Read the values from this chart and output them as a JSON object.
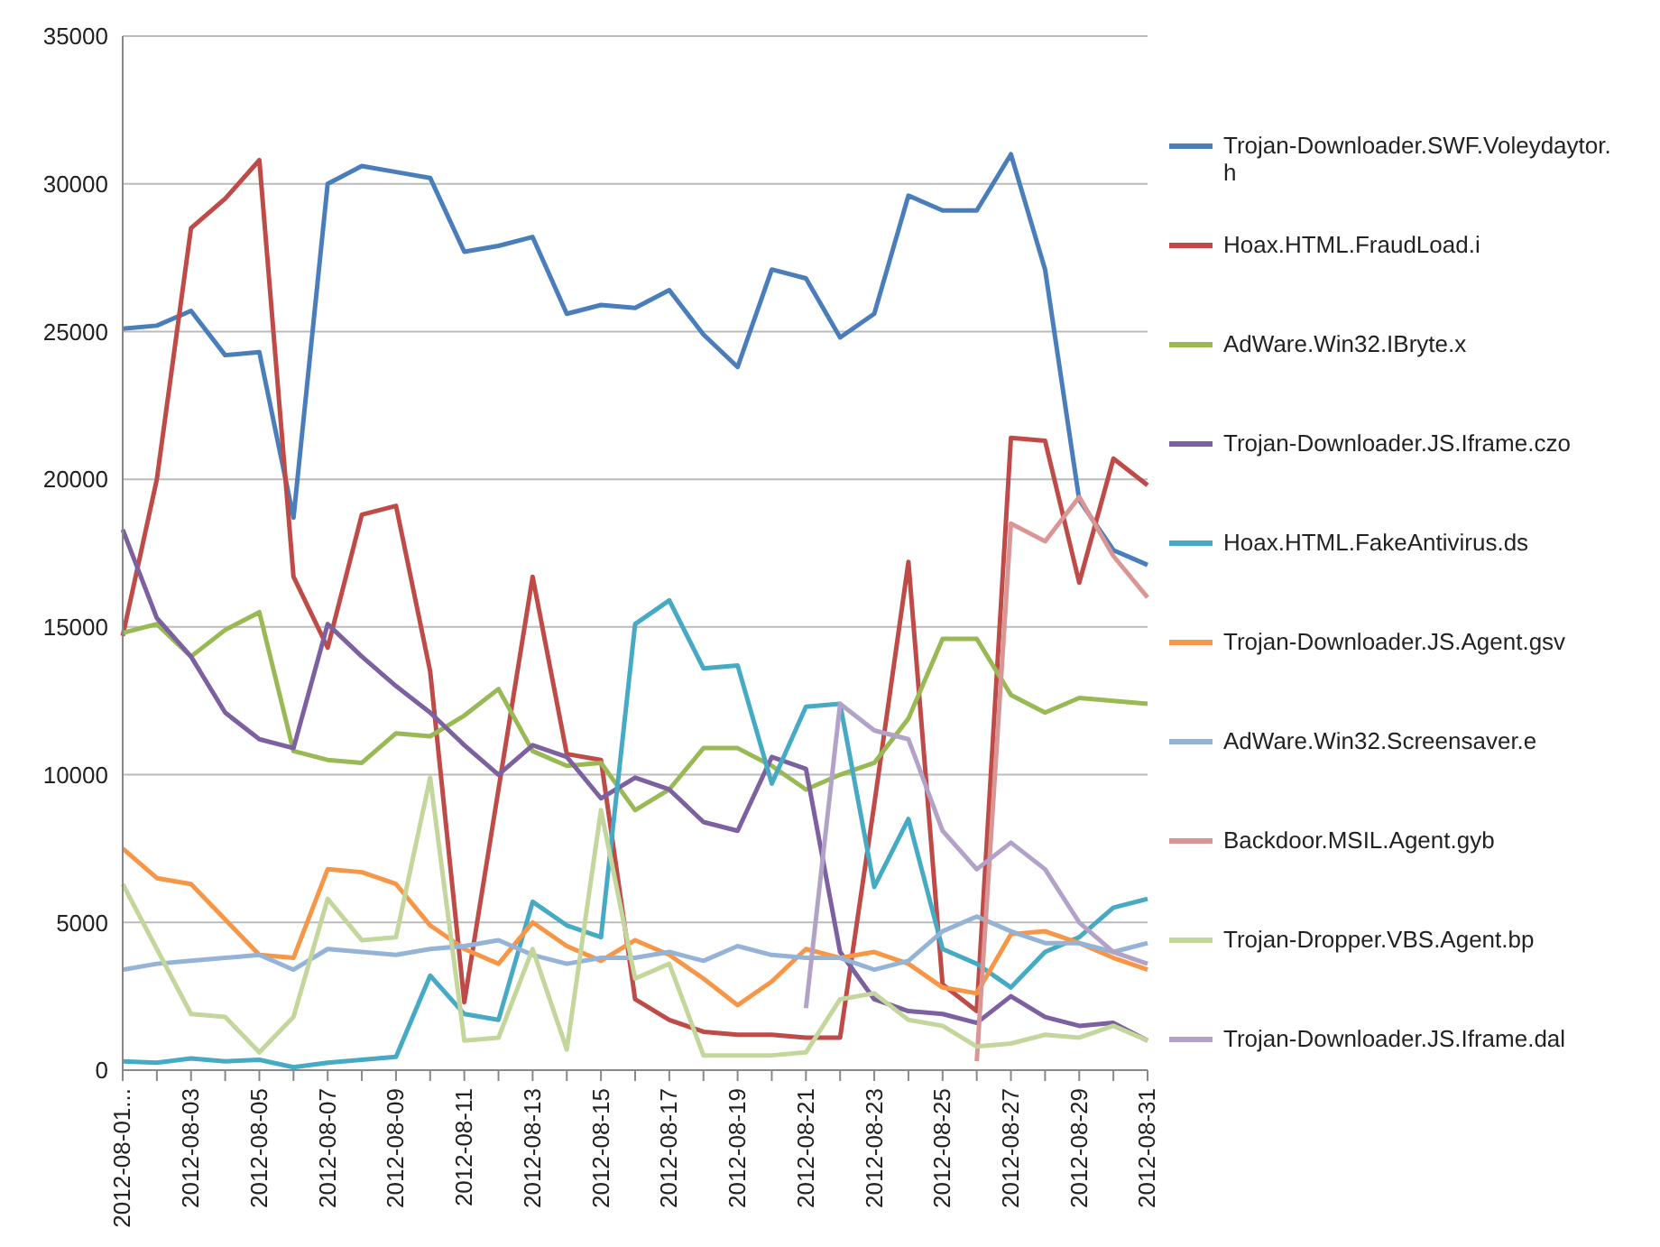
{
  "chart_data": {
    "type": "line",
    "categories": [
      "2012-08-01...",
      null,
      "2012-08-03",
      null,
      "2012-08-05",
      null,
      "2012-08-07",
      null,
      "2012-08-09",
      null,
      "2012-08-11",
      null,
      "2012-08-13",
      null,
      "2012-08-15",
      null,
      "2012-08-17",
      null,
      "2012-08-19",
      null,
      "2012-08-21",
      null,
      "2012-08-23",
      null,
      "2012-08-25",
      null,
      "2012-08-27",
      null,
      "2012-08-29",
      null,
      "2012-08-31"
    ],
    "series": [
      {
        "name": "Trojan-Downloader.SWF.Voleydaytor.h",
        "color": "#4a7ebb",
        "values": [
          25100,
          25200,
          25700,
          24200,
          24300,
          18700,
          30000,
          30600,
          30400,
          30200,
          27700,
          27900,
          28200,
          25600,
          25900,
          25800,
          26400,
          24900,
          23800,
          27100,
          26800,
          24800,
          25600,
          29600,
          29100,
          29100,
          31000,
          27100,
          19300,
          17600,
          17100
        ]
      },
      {
        "name": "Hoax.HTML.FraudLoad.i",
        "color": "#be4b48",
        "values": [
          14700,
          20000,
          28500,
          29500,
          30800,
          16700,
          14300,
          18800,
          19100,
          13500,
          2300,
          9500,
          16700,
          10700,
          10500,
          2400,
          1700,
          1300,
          1200,
          1200,
          1100,
          1100,
          9000,
          17200,
          2900,
          2000,
          21400,
          21300,
          16500,
          20700,
          19800
        ]
      },
      {
        "name": "AdWare.Win32.IBryte.x",
        "color": "#98b954",
        "values": [
          14800,
          15100,
          14000,
          14900,
          15500,
          10800,
          10500,
          10400,
          11400,
          11300,
          12000,
          12900,
          10800,
          10300,
          10400,
          8800,
          9500,
          10900,
          10900,
          10300,
          9500,
          10000,
          10400,
          11900,
          14600,
          14600,
          12700,
          12100,
          12600,
          12500,
          12400
        ]
      },
      {
        "name": "Trojan-Downloader.JS.Iframe.czo",
        "color": "#7d60a0",
        "values": [
          18300,
          15300,
          14000,
          12100,
          11200,
          10900,
          15100,
          14000,
          13000,
          12100,
          11000,
          10000,
          11000,
          10600,
          9200,
          9900,
          9500,
          8400,
          8100,
          10600,
          10200,
          4000,
          2400,
          2000,
          1900,
          1600,
          2500,
          1800,
          1500,
          1600,
          1000
        ]
      },
      {
        "name": "Hoax.HTML.FakeAntivirus.ds",
        "color": "#46aac5",
        "values": [
          300,
          250,
          400,
          300,
          350,
          100,
          250,
          350,
          450,
          3200,
          1900,
          1700,
          5700,
          4900,
          4500,
          15100,
          15900,
          13600,
          13700,
          9700,
          12300,
          12400,
          6200,
          8500,
          4100,
          3600,
          2800,
          4000,
          4500,
          5500,
          5800
        ]
      },
      {
        "name": "Trojan-Downloader.JS.Agent.gsv",
        "color": "#f79646",
        "values": [
          7500,
          6500,
          6300,
          5100,
          3900,
          3800,
          6800,
          6700,
          6300,
          4900,
          4100,
          3600,
          5000,
          4200,
          3700,
          4400,
          3900,
          3100,
          2200,
          3000,
          4100,
          3800,
          4000,
          3600,
          2800,
          2600,
          4600,
          4700,
          4300,
          3800,
          3400
        ]
      },
      {
        "name": "AdWare.Win32.Screensaver.e",
        "color": "#95b3d7",
        "values": [
          3400,
          3600,
          3700,
          3800,
          3900,
          3400,
          4100,
          4000,
          3900,
          4100,
          4200,
          4400,
          3900,
          3600,
          3800,
          3800,
          4000,
          3700,
          4200,
          3900,
          3800,
          3800,
          3400,
          3700,
          4700,
          5200,
          4700,
          4300,
          4300,
          4000,
          4300
        ]
      },
      {
        "name": "Backdoor.MSIL.Agent.gyb",
        "color": "#d99694",
        "values": [
          null,
          null,
          null,
          null,
          null,
          null,
          null,
          null,
          null,
          null,
          null,
          null,
          null,
          null,
          null,
          null,
          null,
          null,
          null,
          null,
          null,
          null,
          null,
          null,
          null,
          300,
          18500,
          17900,
          19400,
          17400,
          16000
        ]
      },
      {
        "name": "Trojan-Dropper.VBS.Agent.bp",
        "color": "#c3d69b",
        "values": [
          6300,
          4100,
          1900,
          1800,
          600,
          1800,
          5800,
          4400,
          4500,
          9900,
          1000,
          1100,
          4100,
          700,
          8800,
          3100,
          3600,
          500,
          500,
          500,
          600,
          2400,
          2600,
          1700,
          1500,
          800,
          900,
          1200,
          1100,
          1500,
          1000
        ]
      },
      {
        "name": "Trojan-Downloader.JS.Iframe.dal",
        "color": "#b3a2c7",
        "values": [
          null,
          null,
          null,
          null,
          null,
          null,
          null,
          null,
          null,
          null,
          null,
          null,
          null,
          null,
          null,
          null,
          null,
          null,
          null,
          null,
          2100,
          12400,
          11500,
          11200,
          8100,
          6800,
          7700,
          6800,
          5000,
          4000,
          3600
        ]
      }
    ],
    "ylim": [
      0,
      35000
    ],
    "yticks": [
      0,
      5000,
      10000,
      15000,
      20000,
      25000,
      30000,
      35000
    ],
    "grid": "y",
    "legend": "right",
    "marker": "none",
    "line_style": "solid"
  }
}
